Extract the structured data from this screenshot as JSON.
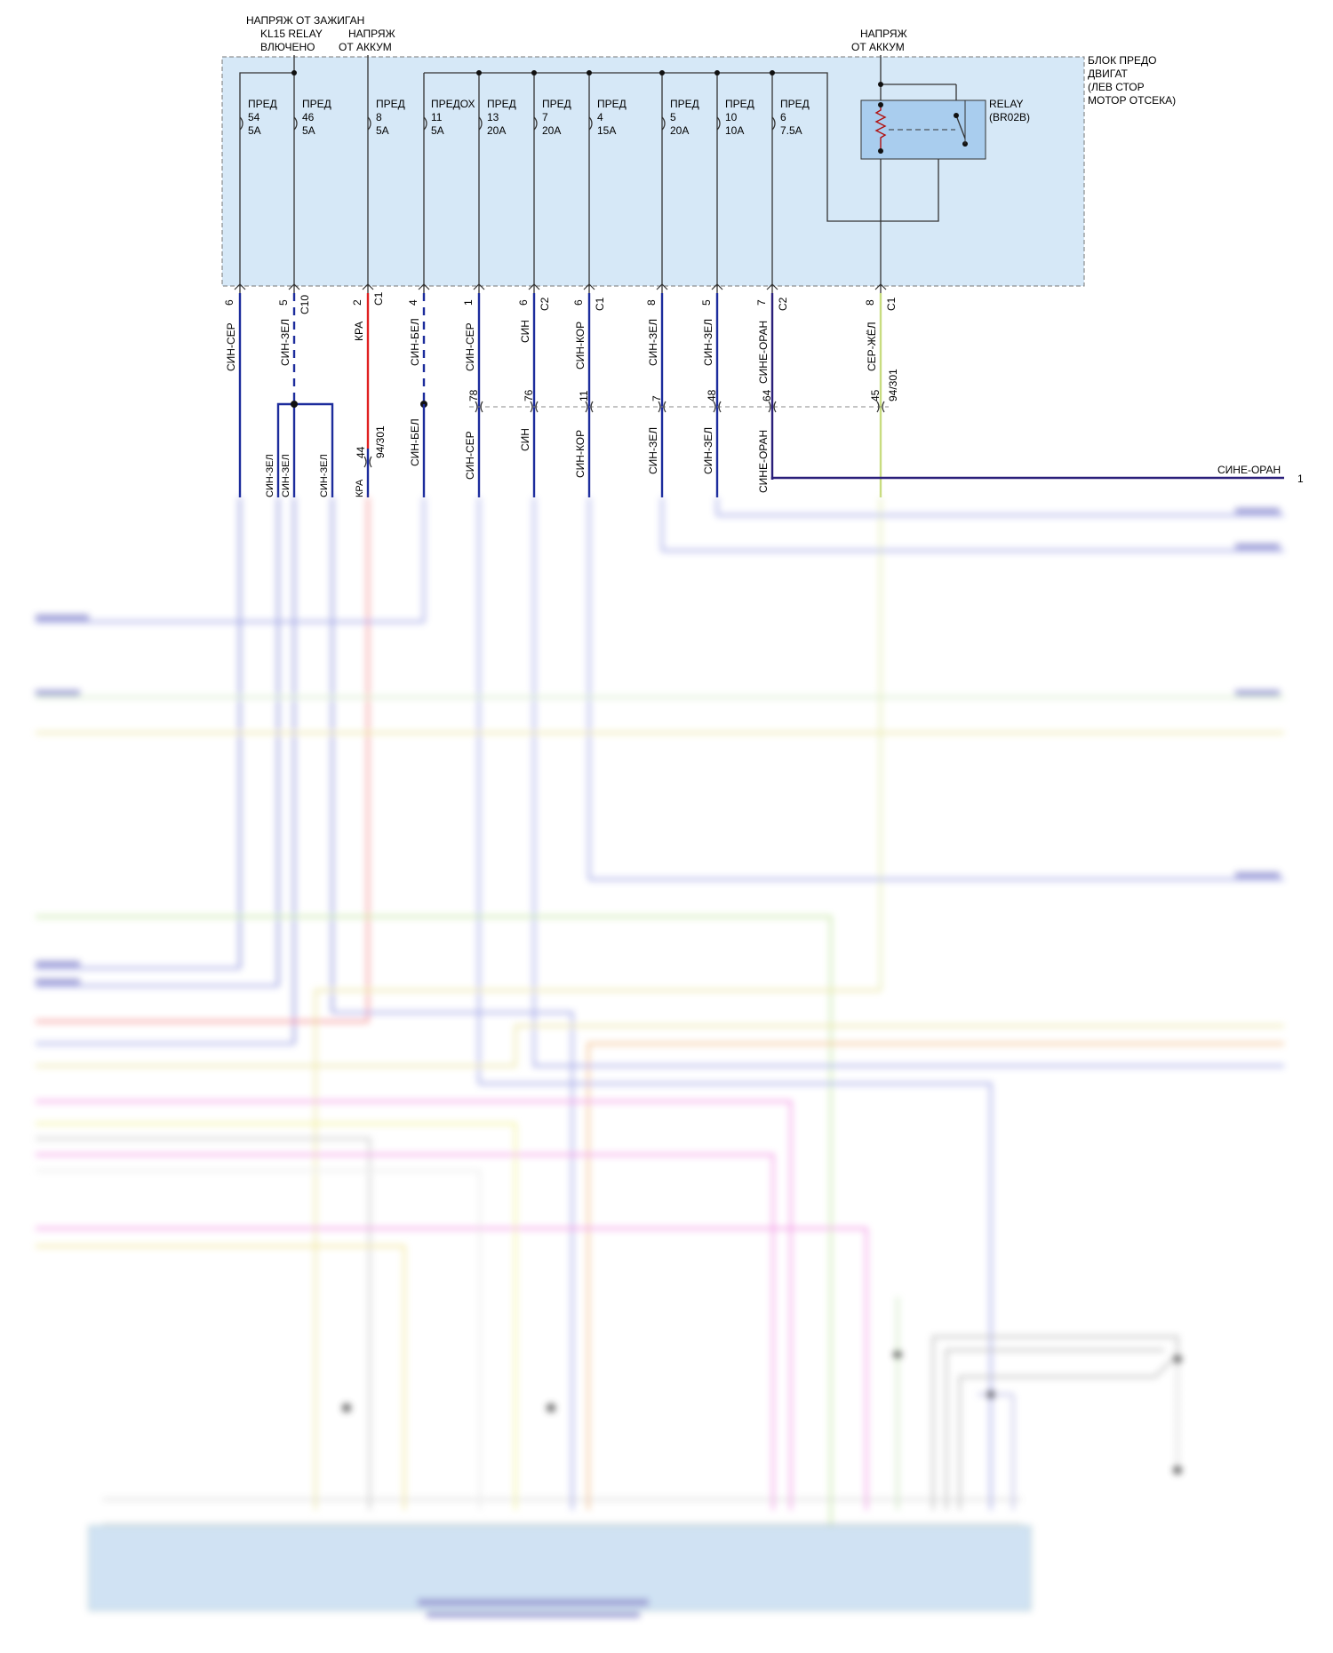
{
  "block": {
    "title_lines": [
      "БЛОК ПРЕДО",
      "ДВИГАТ",
      "(ЛЕВ СТОР",
      "МОТОР ОТСЕКА)"
    ]
  },
  "relay": {
    "label": "RELAY",
    "id": "(BR02B)"
  },
  "top_labels": {
    "ignition": [
      "НАПРЯЖ ОТ ЗАЖИГАН",
      "KL15 RELAY",
      "ВЛЮЧЕНО"
    ],
    "battery1": [
      "НАПРЯЖ",
      "ОТ АККУМ"
    ],
    "battery2": [
      "НАПРЯЖ",
      "ОТ АККУМ"
    ]
  },
  "fuses": [
    {
      "name": "ПРЕД",
      "num": "54",
      "amp": "5A"
    },
    {
      "name": "ПРЕД",
      "num": "46",
      "amp": "5A"
    },
    {
      "name": "ПРЕД",
      "num": "8",
      "amp": "5A"
    },
    {
      "name": "ПРЕДОХ",
      "num": "11",
      "amp": "5A"
    },
    {
      "name": "ПРЕД",
      "num": "13",
      "amp": "20A"
    },
    {
      "name": "ПРЕД",
      "num": "7",
      "amp": "20A"
    },
    {
      "name": "ПРЕД",
      "num": "4",
      "amp": "15A"
    },
    {
      "name": "ПРЕД",
      "num": "5",
      "amp": "20A"
    },
    {
      "name": "ПРЕД",
      "num": "10",
      "amp": "10A"
    },
    {
      "name": "ПРЕД",
      "num": "6",
      "amp": "7.5A"
    }
  ],
  "pins": [
    "6",
    "5",
    "2",
    "4",
    "1",
    "6",
    "6",
    "8",
    "5",
    "7",
    "8"
  ],
  "connectors": [
    "C10",
    "C1",
    "C2",
    "C1",
    "C2",
    "C1"
  ],
  "wire_colors_top": [
    "СИН-СЕР",
    "СИН-ЗЕЛ",
    "КРА",
    "СИН-БЕЛ",
    "СИН-СЕР",
    "СИН",
    "СИН-КОР",
    "СИН-ЗЕЛ",
    "СИН-ЗЕЛ",
    "СИНЕ-ОРАН",
    "СЕР-ЖЁЛ"
  ],
  "splice_pins": [
    "78",
    "76",
    "11",
    "7",
    "48",
    "64",
    "45"
  ],
  "splice_ref": "94/301",
  "splice_pin_kra": "44",
  "wire_colors_mid": [
    "СИН-ЗЕЛ",
    "СИН-ЗЕЛ",
    "СИН-ЗЕЛ",
    "КРА",
    "СИН-БЕЛ",
    "СИН-СЕР",
    "СИН",
    "СИН-КОР",
    "СИН-ЗЕЛ",
    "СИН-ЗЕЛ",
    "СИНЕ-ОРАН"
  ],
  "right_label": "СИНЕ-ОРАН",
  "right_pin": "1",
  "colors": {
    "fusebox_fill": "#d6e8f7",
    "blue": "#1c2c9c",
    "red": "#e02020",
    "dark": "#1a1a1a",
    "yellowgreen": "#c8dc80",
    "purple": "#2a1f7a"
  }
}
